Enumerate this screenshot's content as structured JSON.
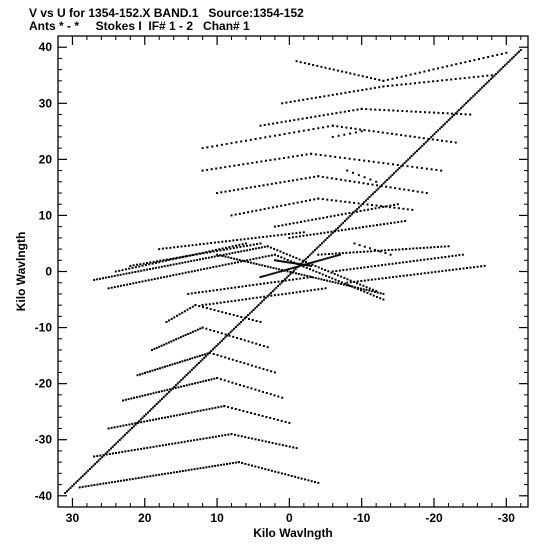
{
  "chart_data": {
    "type": "scatter",
    "title_line_1": "V vs U for 1354-152.X BAND.1   Source:1354-152",
    "title_line_2": "Ants * - *     Stokes I  IF# 1 - 2   Chan# 1",
    "xlabel": "Kilo Wavlngth",
    "ylabel": "Kilo Wavlngth",
    "xlim": [
      32,
      -33
    ],
    "ylim": [
      -42,
      42
    ],
    "x_ticks": [
      30,
      20,
      10,
      0,
      -10,
      -20,
      -30
    ],
    "y_ticks": [
      -40,
      -30,
      -20,
      -10,
      0,
      10,
      20,
      30,
      40
    ],
    "x_tick_labels": [
      "30",
      "20",
      "10",
      "0",
      "-10",
      "-20",
      "-30"
    ],
    "y_tick_labels": [
      "-40",
      "-30",
      "-20",
      "-10",
      "0",
      "10",
      "20",
      "30",
      "40"
    ],
    "marker_color": "#000000",
    "grid": false,
    "legend": "none",
    "description_note": "",
    "tracks": [
      {
        "from": [
          31,
          -39.5
        ],
        "to": [
          -32,
          39.5
        ],
        "points": 260
      },
      {
        "from": [
          4,
          -1
        ],
        "to": [
          -7,
          3
        ],
        "points": 40
      },
      {
        "from": [
          10,
          3
        ],
        "to": [
          -13,
          -4
        ],
        "points": 60
      },
      {
        "from": [
          29,
          -38.5
        ],
        "to": [
          7,
          -34
        ],
        "points": 55
      },
      {
        "from": [
          7,
          -34
        ],
        "to": [
          -4,
          -37.7
        ],
        "points": 25
      },
      {
        "from": [
          27,
          -33
        ],
        "to": [
          8,
          -29
        ],
        "points": 45
      },
      {
        "from": [
          8,
          -29
        ],
        "to": [
          -1,
          -31.5
        ],
        "points": 20
      },
      {
        "from": [
          25,
          -28
        ],
        "to": [
          9,
          -24
        ],
        "points": 40
      },
      {
        "from": [
          9,
          -24
        ],
        "to": [
          0,
          -27
        ],
        "points": 18
      },
      {
        "from": [
          23,
          -23
        ],
        "to": [
          10,
          -19
        ],
        "points": 35
      },
      {
        "from": [
          10,
          -19
        ],
        "to": [
          1,
          -22.5
        ],
        "points": 18
      },
      {
        "from": [
          21,
          -18.5
        ],
        "to": [
          11,
          -14.5
        ],
        "points": 30
      },
      {
        "from": [
          11,
          -14.5
        ],
        "to": [
          2,
          -18
        ],
        "points": 18
      },
      {
        "from": [
          19,
          -14
        ],
        "to": [
          12,
          -10
        ],
        "points": 22
      },
      {
        "from": [
          12,
          -10
        ],
        "to": [
          3,
          -13.5
        ],
        "points": 18
      },
      {
        "from": [
          17,
          -9
        ],
        "to": [
          13,
          -6
        ],
        "points": 12
      },
      {
        "from": [
          13,
          -6
        ],
        "to": [
          4,
          -9
        ],
        "points": 18
      },
      {
        "from": [
          27,
          -1.5
        ],
        "to": [
          3,
          4.5
        ],
        "points": 60
      },
      {
        "from": [
          3,
          4.5
        ],
        "to": [
          -12,
          -3.5
        ],
        "points": 35
      },
      {
        "from": [
          25,
          -3
        ],
        "to": [
          2,
          3
        ],
        "points": 55
      },
      {
        "from": [
          2,
          3
        ],
        "to": [
          -13,
          -5
        ],
        "points": 35
      },
      {
        "from": [
          24,
          0
        ],
        "to": [
          6,
          5
        ],
        "points": 40
      },
      {
        "from": [
          22,
          1
        ],
        "to": [
          4,
          5
        ],
        "points": 40
      },
      {
        "from": [
          18,
          4
        ],
        "to": [
          -2,
          7
        ],
        "points": 40
      },
      {
        "from": [
          -8,
          -2
        ],
        "to": [
          -27,
          1
        ],
        "points": 40
      },
      {
        "from": [
          -6,
          0
        ],
        "to": [
          -24,
          3
        ],
        "points": 38
      },
      {
        "from": [
          -4,
          3
        ],
        "to": [
          -22,
          4.5
        ],
        "points": 38
      },
      {
        "from": [
          14,
          -4
        ],
        "to": [
          -3,
          -1
        ],
        "points": 35
      },
      {
        "from": [
          12,
          -6
        ],
        "to": [
          -5,
          -3
        ],
        "points": 35
      },
      {
        "from": [
          0,
          6
        ],
        "to": [
          -16,
          9
        ],
        "points": 34
      },
      {
        "from": [
          2,
          8
        ],
        "to": [
          -15,
          12
        ],
        "points": 34
      },
      {
        "from": [
          8,
          10
        ],
        "to": [
          -4,
          13
        ],
        "points": 22
      },
      {
        "from": [
          -4,
          13
        ],
        "to": [
          -17,
          11
        ],
        "points": 22
      },
      {
        "from": [
          10,
          14
        ],
        "to": [
          -4,
          17
        ],
        "points": 25
      },
      {
        "from": [
          -4,
          17
        ],
        "to": [
          -19,
          14
        ],
        "points": 25
      },
      {
        "from": [
          12,
          18
        ],
        "to": [
          -3,
          21
        ],
        "points": 25
      },
      {
        "from": [
          -3,
          21
        ],
        "to": [
          -21,
          18
        ],
        "points": 28
      },
      {
        "from": [
          12,
          22
        ],
        "to": [
          -6,
          26
        ],
        "points": 28
      },
      {
        "from": [
          -6,
          26
        ],
        "to": [
          -23,
          23
        ],
        "points": 28
      },
      {
        "from": [
          4,
          26
        ],
        "to": [
          -10,
          29
        ],
        "points": 25
      },
      {
        "from": [
          -10,
          29
        ],
        "to": [
          -25,
          28
        ],
        "points": 25
      },
      {
        "from": [
          1,
          30
        ],
        "to": [
          -13,
          33
        ],
        "points": 25
      },
      {
        "from": [
          -13,
          33
        ],
        "to": [
          -28,
          35
        ],
        "points": 25
      },
      {
        "from": [
          -1,
          37.5
        ],
        "to": [
          -13,
          34
        ],
        "points": 22
      },
      {
        "from": [
          -13,
          34
        ],
        "to": [
          -30,
          39
        ],
        "points": 28
      },
      {
        "from": [
          -6,
          24
        ],
        "to": [
          -10,
          25
        ],
        "points": 6
      },
      {
        "from": [
          -8,
          18
        ],
        "to": [
          -12,
          16
        ],
        "points": 6
      },
      {
        "from": [
          -9,
          5
        ],
        "to": [
          -14,
          3
        ],
        "points": 8
      },
      {
        "from": [
          2,
          2
        ],
        "to": [
          -3,
          1
        ],
        "points": 20
      }
    ]
  }
}
